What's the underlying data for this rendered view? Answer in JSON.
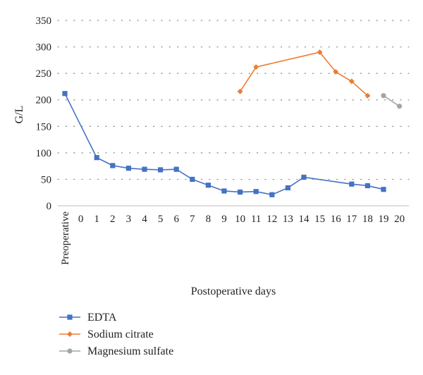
{
  "chart_data": {
    "type": "line",
    "xlabel": "Postoperative days",
    "ylabel": "G/L",
    "ylim": [
      0,
      350
    ],
    "yticks": [
      0,
      50,
      100,
      150,
      200,
      250,
      300,
      350
    ],
    "categories": [
      "Preoperative",
      "0",
      "1",
      "2",
      "3",
      "4",
      "5",
      "6",
      "7",
      "8",
      "9",
      "10",
      "11",
      "12",
      "13",
      "14",
      "15",
      "16",
      "17",
      "18",
      "19",
      "20"
    ],
    "grid": "horizontal dotted",
    "legend_position": "bottom-left",
    "series": [
      {
        "name": "EDTA",
        "color": "#4472c4",
        "marker": "square",
        "points": [
          {
            "x": "Preoperative",
            "y": 212
          },
          {
            "x": "1",
            "y": 91
          },
          {
            "x": "2",
            "y": 76
          },
          {
            "x": "3",
            "y": 71
          },
          {
            "x": "4",
            "y": 69
          },
          {
            "x": "5",
            "y": 68
          },
          {
            "x": "6",
            "y": 69
          },
          {
            "x": "7",
            "y": 50
          },
          {
            "x": "8",
            "y": 39
          },
          {
            "x": "9",
            "y": 28
          },
          {
            "x": "10",
            "y": 26
          },
          {
            "x": "11",
            "y": 27
          },
          {
            "x": "12",
            "y": 21
          },
          {
            "x": "13",
            "y": 34
          },
          {
            "x": "14",
            "y": 54
          },
          {
            "x": "17",
            "y": 41
          },
          {
            "x": "18",
            "y": 38
          },
          {
            "x": "19",
            "y": 31
          }
        ]
      },
      {
        "name": "Sodium citrate",
        "color": "#ed7d31",
        "marker": "diamond",
        "points": [
          {
            "x": "10",
            "y": 216
          },
          {
            "x": "11",
            "y": 262
          },
          {
            "x": "15",
            "y": 290
          },
          {
            "x": "16",
            "y": 253
          },
          {
            "x": "17",
            "y": 235
          },
          {
            "x": "18",
            "y": 208
          }
        ]
      },
      {
        "name": "Magnesium sulfate",
        "color": "#a5a5a5",
        "marker": "circle",
        "points": [
          {
            "x": "19",
            "y": 208
          },
          {
            "x": "20",
            "y": 188
          }
        ]
      }
    ]
  }
}
